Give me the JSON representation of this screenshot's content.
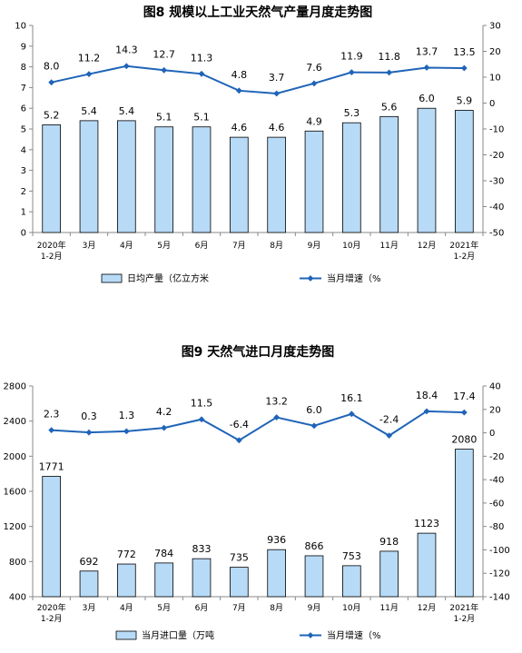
{
  "chart_data": [
    {
      "type": "bar",
      "title": "图8  规模以上工业天然气产量月度走势图",
      "categories": [
        [
          "2020年",
          "1-2月"
        ],
        [
          "3月"
        ],
        [
          "4月"
        ],
        [
          "5月"
        ],
        [
          "6月"
        ],
        [
          "7月"
        ],
        [
          "8月"
        ],
        [
          "9月"
        ],
        [
          "10月"
        ],
        [
          "11月"
        ],
        [
          "12月"
        ],
        [
          "2021年",
          "1-2月"
        ]
      ],
      "y_left": {
        "ylim": [
          0,
          10
        ],
        "ticks": [
          0,
          1,
          2,
          3,
          4,
          5,
          6,
          7,
          8,
          9,
          10
        ]
      },
      "y_right": {
        "ylim": [
          -50,
          30
        ],
        "ticks": [
          -50,
          -40,
          -30,
          -20,
          -10,
          0,
          10,
          20,
          30
        ]
      },
      "series": [
        {
          "name": "日均产量（亿立方米",
          "type": "bar",
          "axis": "left",
          "color": "#b7daf7",
          "values": [
            5.2,
            5.4,
            5.4,
            5.1,
            5.1,
            4.6,
            4.6,
            4.9,
            5.3,
            5.6,
            6.0,
            5.9
          ],
          "labels": [
            "5.2",
            "5.4",
            "5.4",
            "5.1",
            "5.1",
            "4.6",
            "4.6",
            "4.9",
            "5.3",
            "5.6",
            "6.0",
            "5.9"
          ]
        },
        {
          "name": "当月增速（%",
          "type": "line",
          "axis": "right",
          "color": "#1f64b8",
          "values": [
            8.0,
            11.2,
            14.3,
            12.7,
            11.3,
            4.8,
            3.7,
            7.6,
            11.9,
            11.8,
            13.7,
            13.5
          ],
          "labels": [
            "8.0",
            "11.2",
            "14.3",
            "12.7",
            "11.3",
            "4.8",
            "3.7",
            "7.6",
            "11.9",
            "11.8",
            "13.7",
            "13.5"
          ]
        }
      ],
      "legend": "bottom"
    },
    {
      "type": "bar",
      "title": "图9  天然气进口月度走势图",
      "categories": [
        [
          "2020年",
          "1-2月"
        ],
        [
          "3月"
        ],
        [
          "4月"
        ],
        [
          "5月"
        ],
        [
          "6月"
        ],
        [
          "7月"
        ],
        [
          "8月"
        ],
        [
          "9月"
        ],
        [
          "10月"
        ],
        [
          "11月"
        ],
        [
          "12月"
        ],
        [
          "2021年",
          "1-2月"
        ]
      ],
      "y_left": {
        "ylim": [
          400,
          2800
        ],
        "ticks": [
          400,
          800,
          1200,
          1600,
          2000,
          2400,
          2800
        ]
      },
      "y_right": {
        "ylim": [
          -140,
          40
        ],
        "ticks": [
          -140,
          -120,
          -100,
          -80,
          -60,
          -40,
          -20,
          0,
          20,
          40
        ]
      },
      "series": [
        {
          "name": "当月进口量（万吨",
          "type": "bar",
          "axis": "left",
          "color": "#b7daf7",
          "values": [
            1771,
            692,
            772,
            784,
            833,
            735,
            936,
            866,
            753,
            918,
            1123,
            2080
          ],
          "labels": [
            "1771",
            "692",
            "772",
            "784",
            "833",
            "735",
            "936",
            "866",
            "753",
            "918",
            "1123",
            "2080"
          ]
        },
        {
          "name": "当月增速（%",
          "type": "line",
          "axis": "right",
          "color": "#1f64b8",
          "values": [
            2.3,
            0.3,
            1.3,
            4.2,
            11.5,
            -6.4,
            13.2,
            6.0,
            16.1,
            -2.4,
            18.4,
            17.4
          ],
          "labels": [
            "2.3",
            "0.3",
            "1.3",
            "4.2",
            "11.5",
            "-6.4",
            "13.2",
            "6.0",
            "16.1",
            "-2.4",
            "18.4",
            "17.4"
          ]
        }
      ],
      "legend": "bottom"
    }
  ]
}
